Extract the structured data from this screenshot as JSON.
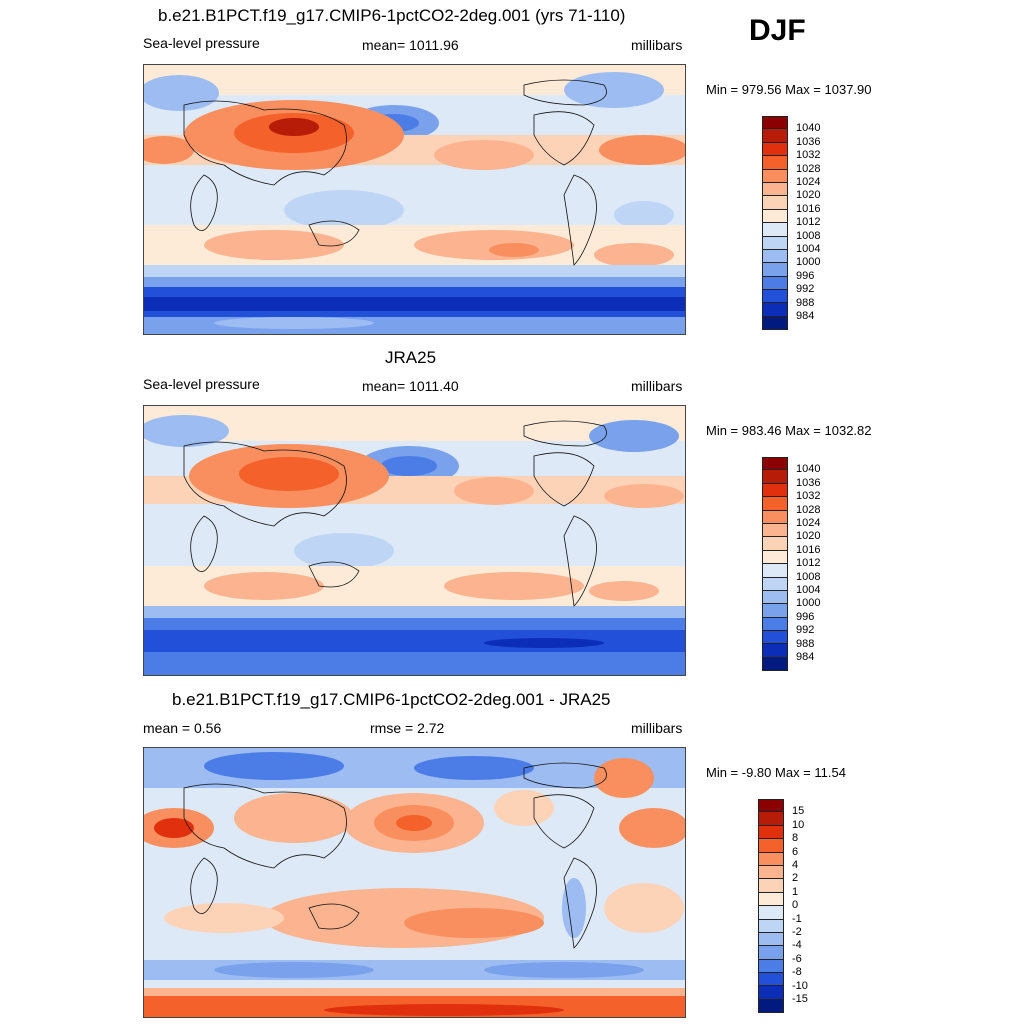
{
  "header": {
    "season": "DJF"
  },
  "panels": [
    {
      "title": "b.e21.B1PCT.f19_g17.CMIP6-1pctCO2-2deg.001 (yrs 71-110)",
      "left_label": "Sea-level pressure",
      "center_label": "mean= 1011.96",
      "right_label": "millibars",
      "minmax": "Min = 979.56 Max = 1037.90",
      "colorbar": {
        "labels": [
          "1040",
          "1036",
          "1032",
          "1028",
          "1024",
          "1020",
          "1016",
          "1012",
          "1008",
          "1004",
          "1000",
          "996",
          "992",
          "988",
          "984"
        ],
        "colors": [
          "#8b0000",
          "#b71c08",
          "#e0300e",
          "#f4612a",
          "#f98f5f",
          "#fbb48f",
          "#fdd3b8",
          "#fdebd8",
          "#dde9f7",
          "#bfd5f5",
          "#9cbcf2",
          "#7aa2ec",
          "#4c7ce6",
          "#2350d8",
          "#0b2db8",
          "#001a80"
        ]
      }
    },
    {
      "title": "JRA25",
      "left_label": "Sea-level pressure",
      "center_label": "mean= 1011.40",
      "right_label": "millibars",
      "minmax": "Min = 983.46 Max = 1032.82",
      "colorbar": {
        "labels": [
          "1040",
          "1036",
          "1032",
          "1028",
          "1024",
          "1020",
          "1016",
          "1012",
          "1008",
          "1004",
          "1000",
          "996",
          "992",
          "988",
          "984"
        ],
        "colors": [
          "#8b0000",
          "#b71c08",
          "#e0300e",
          "#f4612a",
          "#f98f5f",
          "#fbb48f",
          "#fdd3b8",
          "#fdebd8",
          "#dde9f7",
          "#bfd5f5",
          "#9cbcf2",
          "#7aa2ec",
          "#4c7ce6",
          "#2350d8",
          "#0b2db8",
          "#001a80"
        ]
      }
    },
    {
      "title": "b.e21.B1PCT.f19_g17.CMIP6-1pctCO2-2deg.001 - JRA25",
      "left_label": "mean =   0.56",
      "center_label": "rmse =   2.72",
      "right_label": "millibars",
      "minmax": "Min =  -9.80 Max =  11.54",
      "colorbar": {
        "labels": [
          "15",
          "10",
          "8",
          "6",
          "4",
          "2",
          "1",
          "0",
          "-1",
          "-2",
          "-4",
          "-6",
          "-8",
          "-10",
          "-15"
        ],
        "colors": [
          "#8b0000",
          "#b71c08",
          "#e0300e",
          "#f4612a",
          "#f98f5f",
          "#fbb48f",
          "#fdd3b8",
          "#fdebd8",
          "#dde9f7",
          "#bfd5f5",
          "#9cbcf2",
          "#7aa2ec",
          "#4c7ce6",
          "#2350d8",
          "#0b2db8",
          "#001a80"
        ]
      }
    }
  ]
}
